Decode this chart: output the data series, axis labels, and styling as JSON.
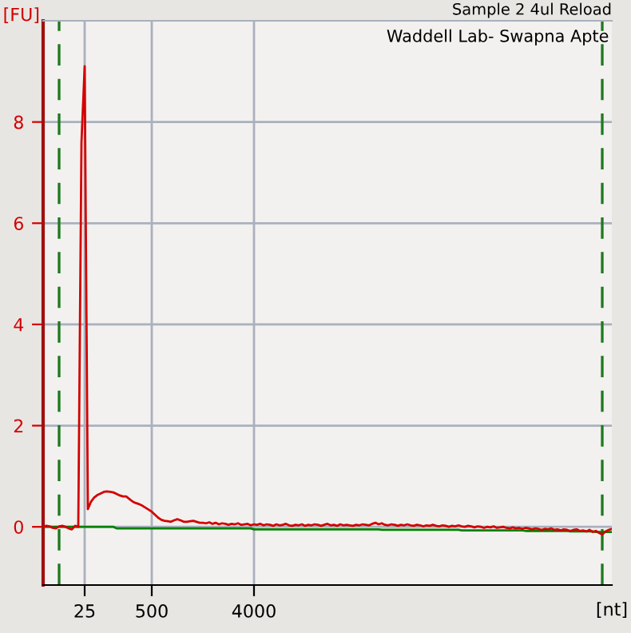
{
  "chart_data": {
    "type": "line",
    "title": "Sample 2 4ul Reload",
    "subtitle": "Waddell Lab- Swapna Apte",
    "xlabel": "[nt]",
    "ylabel": "[FU]",
    "categories": [
      null,
      null,
      null,
      null,
      null,
      null,
      null,
      null,
      null,
      null,
      null,
      null,
      null,
      "25",
      null,
      null,
      null,
      null,
      null,
      null,
      null,
      null,
      null,
      null,
      null,
      null,
      null,
      null,
      null,
      null,
      null,
      null,
      null,
      null,
      "500",
      null,
      null,
      null,
      null,
      null,
      null,
      null,
      null,
      null,
      null,
      null,
      null,
      null,
      null,
      null,
      null,
      null,
      null,
      null,
      null,
      null,
      null,
      null,
      null,
      null,
      null,
      null,
      null,
      null,
      null,
      null,
      "4000",
      null,
      null,
      null,
      null,
      null,
      null,
      null,
      null,
      null,
      null,
      null,
      null,
      null,
      null,
      null,
      null,
      null,
      null,
      null,
      null,
      null,
      null,
      null,
      null,
      null,
      null,
      null,
      null,
      null,
      null,
      null,
      null,
      null,
      null,
      null,
      null,
      null,
      null,
      null,
      null,
      null,
      null,
      null,
      null,
      null,
      null,
      null,
      null,
      null,
      null,
      null,
      null,
      null,
      null,
      null,
      null,
      null,
      null,
      null,
      null,
      null,
      null,
      null,
      null,
      null,
      null,
      null,
      null,
      null,
      null,
      null,
      null,
      null,
      null,
      null,
      null,
      null,
      null,
      null,
      null,
      null,
      null,
      null,
      null,
      null,
      null,
      null,
      null,
      null,
      null,
      null,
      null,
      null,
      null,
      null,
      null,
      null,
      null,
      null,
      null,
      null,
      null,
      null,
      null,
      null,
      null,
      null,
      null,
      null,
      null,
      null,
      null
    ],
    "ylim": [
      -1.15,
      10
    ],
    "yticks": [
      0,
      2,
      4,
      6,
      8
    ],
    "grid": true,
    "marker": "none",
    "line_style": "solid",
    "series": [
      {
        "color": "#008000",
        "values": [
          0,
          0,
          0,
          0,
          0,
          0,
          0,
          0,
          0,
          0,
          0,
          0,
          0,
          0,
          0,
          0,
          0,
          0,
          0,
          0,
          0,
          0,
          0,
          -0.03,
          -0.03,
          -0.03,
          -0.03,
          -0.03,
          -0.03,
          -0.03,
          -0.03,
          -0.03,
          -0.03,
          -0.03,
          -0.03,
          -0.03,
          -0.03,
          -0.03,
          -0.03,
          -0.03,
          -0.03,
          -0.03,
          -0.03,
          -0.03,
          -0.03,
          -0.03,
          -0.03,
          -0.03,
          -0.03,
          -0.03,
          -0.03,
          -0.03,
          -0.03,
          -0.03,
          -0.03,
          -0.03,
          -0.03,
          -0.03,
          -0.03,
          -0.03,
          -0.03,
          -0.03,
          -0.03,
          -0.03,
          -0.03,
          -0.03,
          -0.05,
          -0.05,
          -0.05,
          -0.05,
          -0.05,
          -0.05,
          -0.05,
          -0.05,
          -0.05,
          -0.05,
          -0.05,
          -0.05,
          -0.05,
          -0.05,
          -0.05,
          -0.05,
          -0.05,
          -0.05,
          -0.05,
          -0.05,
          -0.05,
          -0.05,
          -0.05,
          -0.05,
          -0.05,
          -0.05,
          -0.05,
          -0.05,
          -0.05,
          -0.05,
          -0.05,
          -0.05,
          -0.05,
          -0.05,
          -0.05,
          -0.05,
          -0.05,
          -0.05,
          -0.05,
          -0.05,
          -0.06,
          -0.06,
          -0.06,
          -0.06,
          -0.06,
          -0.06,
          -0.06,
          -0.06,
          -0.06,
          -0.06,
          -0.06,
          -0.06,
          -0.06,
          -0.06,
          -0.06,
          -0.06,
          -0.06,
          -0.06,
          -0.06,
          -0.06,
          -0.06,
          -0.06,
          -0.06,
          -0.06,
          -0.06,
          -0.07,
          -0.07,
          -0.07,
          -0.07,
          -0.07,
          -0.07,
          -0.07,
          -0.07,
          -0.07,
          -0.07,
          -0.07,
          -0.07,
          -0.07,
          -0.07,
          -0.07,
          -0.07,
          -0.07,
          -0.07,
          -0.07,
          -0.07,
          -0.08,
          -0.08,
          -0.08,
          -0.08,
          -0.08,
          -0.08,
          -0.08,
          -0.08,
          -0.08,
          -0.08,
          -0.08,
          -0.08,
          -0.08,
          -0.08,
          -0.09,
          -0.09,
          -0.09,
          -0.09,
          -0.09,
          -0.09,
          -0.09,
          -0.09,
          -0.1,
          -0.1,
          -0.1,
          -0.1,
          -0.1,
          -0.1
        ]
      },
      {
        "color": "#d40000",
        "values": [
          0,
          0.02,
          0.01,
          -0.02,
          -0.03,
          0.01,
          0.02,
          0,
          -0.03,
          -0.05,
          0.02,
          0,
          7.6,
          9.1,
          0.35,
          0.5,
          0.58,
          0.63,
          0.66,
          0.69,
          0.7,
          0.69,
          0.68,
          0.65,
          0.62,
          0.6,
          0.6,
          0.55,
          0.5,
          0.47,
          0.45,
          0.42,
          0.38,
          0.34,
          0.3,
          0.24,
          0.18,
          0.14,
          0.12,
          0.11,
          0.1,
          0.13,
          0.15,
          0.13,
          0.1,
          0.1,
          0.11,
          0.12,
          0.1,
          0.08,
          0.08,
          0.07,
          0.09,
          0.06,
          0.08,
          0.05,
          0.07,
          0.06,
          0.04,
          0.06,
          0.05,
          0.07,
          0.04,
          0.05,
          0.06,
          0.03,
          0.05,
          0.04,
          0.06,
          0.03,
          0.05,
          0.04,
          0.02,
          0.05,
          0.03,
          0.04,
          0.06,
          0.03,
          0.02,
          0.04,
          0.03,
          0.05,
          0.02,
          0.04,
          0.03,
          0.05,
          0.04,
          0.02,
          0.04,
          0.06,
          0.03,
          0.04,
          0.02,
          0.05,
          0.03,
          0.04,
          0.03,
          0.02,
          0.04,
          0.03,
          0.05,
          0.04,
          0.03,
          0.06,
          0.08,
          0.05,
          0.07,
          0.04,
          0.03,
          0.05,
          0.04,
          0.02,
          0.04,
          0.03,
          0.05,
          0.03,
          0.02,
          0.04,
          0.03,
          0.01,
          0.03,
          0.02,
          0.04,
          0.02,
          0.01,
          0.03,
          0.02,
          0,
          0.02,
          0.01,
          0.03,
          0.01,
          0,
          0.02,
          0.01,
          -0.01,
          0.01,
          0,
          -0.02,
          0,
          -0.01,
          0.01,
          -0.02,
          -0.01,
          0,
          -0.02,
          -0.03,
          -0.01,
          -0.03,
          -0.02,
          -0.04,
          -0.02,
          -0.03,
          -0.05,
          -0.03,
          -0.04,
          -0.06,
          -0.04,
          -0.05,
          -0.03,
          -0.06,
          -0.05,
          -0.07,
          -0.05,
          -0.06,
          -0.08,
          -0.06,
          -0.05,
          -0.08,
          -0.07,
          -0.09,
          -0.06,
          -0.1,
          -0.08,
          -0.12,
          -0.15,
          -0.09,
          -0.06,
          -0.04
        ]
      }
    ]
  }
}
